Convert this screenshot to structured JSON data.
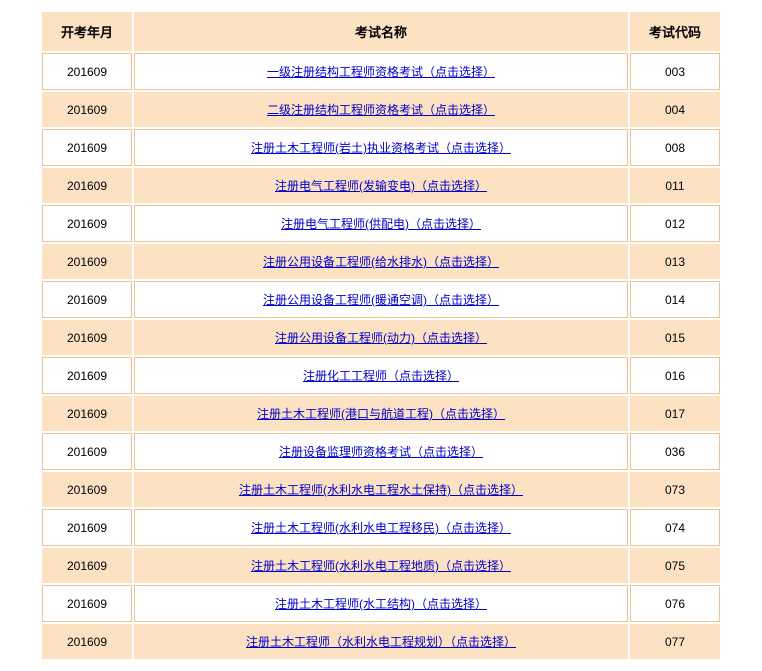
{
  "table": {
    "headers": {
      "date": "开考年月",
      "name": "考试名称",
      "code": "考试代码"
    },
    "rows": [
      {
        "date": "201609",
        "name": "一级注册结构工程师资格考试（点击选择）",
        "code": "003"
      },
      {
        "date": "201609",
        "name": "二级注册结构工程师资格考试（点击选择）",
        "code": "004"
      },
      {
        "date": "201609",
        "name": "注册土木工程师(岩土)执业资格考试（点击选择）",
        "code": "008"
      },
      {
        "date": "201609",
        "name": "注册电气工程师(发输变电)（点击选择）",
        "code": "011"
      },
      {
        "date": "201609",
        "name": "注册电气工程师(供配电)（点击选择）",
        "code": "012"
      },
      {
        "date": "201609",
        "name": "注册公用设备工程师(给水排水)（点击选择）",
        "code": "013"
      },
      {
        "date": "201609",
        "name": "注册公用设备工程师(暖通空调)（点击选择）",
        "code": "014"
      },
      {
        "date": "201609",
        "name": "注册公用设备工程师(动力)（点击选择）",
        "code": "015"
      },
      {
        "date": "201609",
        "name": "注册化工工程师（点击选择）",
        "code": "016"
      },
      {
        "date": "201609",
        "name": "注册土木工程师(港口与航道工程)（点击选择）",
        "code": "017"
      },
      {
        "date": "201609",
        "name": "注册设备监理师资格考试（点击选择）",
        "code": "036"
      },
      {
        "date": "201609",
        "name": "注册土木工程师(水利水电工程水土保持)（点击选择）",
        "code": "073"
      },
      {
        "date": "201609",
        "name": "注册土木工程师(水利水电工程移民)（点击选择）",
        "code": "074"
      },
      {
        "date": "201609",
        "name": "注册土木工程师(水利水电工程地质)（点击选择）",
        "code": "075"
      },
      {
        "date": "201609",
        "name": "注册土木工程师(水工结构)（点击选择）",
        "code": "076"
      },
      {
        "date": "201609",
        "name": "注册土木工程师（水利水电工程规划）（点击选择）",
        "code": "077"
      }
    ]
  },
  "style": {
    "header_bg": "#fde1c3",
    "odd_row_bg": "#ffffff",
    "even_row_bg": "#fde1c3",
    "border_color": "#f1c28f",
    "link_color": "#0000cc",
    "text_color": "#000000",
    "header_fontsize": 13,
    "cell_fontsize": 12,
    "col_widths": {
      "date": 90,
      "name": "auto",
      "code": 90
    }
  }
}
